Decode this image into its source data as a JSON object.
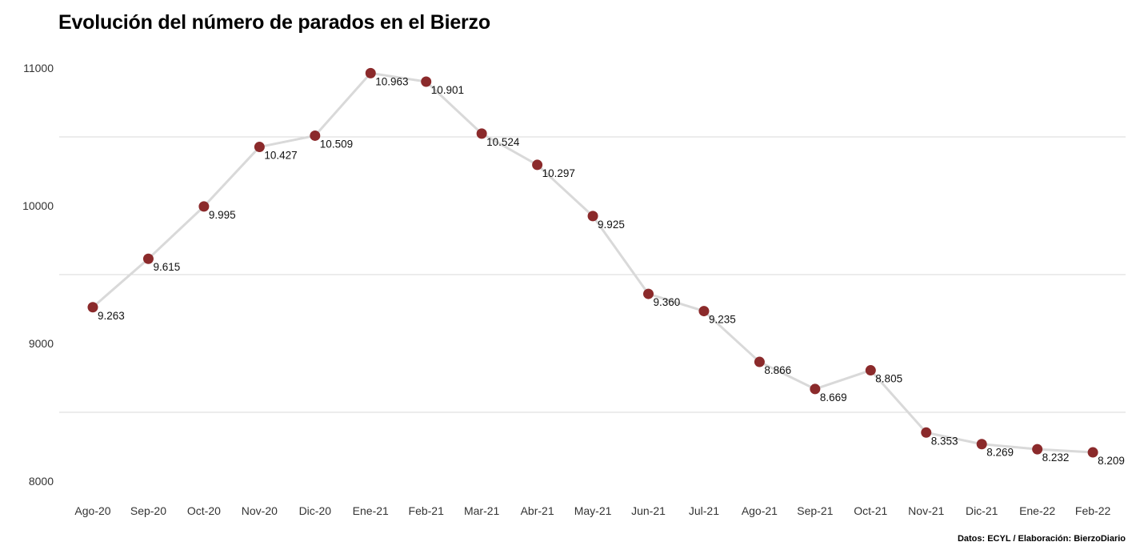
{
  "chart_data": {
    "type": "line",
    "title": "Evolución del número de parados en el Bierzo",
    "credit": "Datos: ECYL / Elaboración: BierzoDiario",
    "xlabel": "",
    "ylabel": "",
    "ylim": [
      8000,
      11000
    ],
    "y_ticks": [
      "8000",
      "9000",
      "10000",
      "11000"
    ],
    "grid": true,
    "categories": [
      "Ago-20",
      "Sep-20",
      "Oct-20",
      "Nov-20",
      "Dic-20",
      "Ene-21",
      "Feb-21",
      "Mar-21",
      "Abr-21",
      "May-21",
      "Jun-21",
      "Jul-21",
      "Ago-21",
      "Sep-21",
      "Oct-21",
      "Nov-21",
      "Dic-21",
      "Ene-22",
      "Feb-22"
    ],
    "values": [
      9263,
      9615,
      9995,
      10427,
      10509,
      10963,
      10901,
      10524,
      10297,
      9925,
      9360,
      9235,
      8866,
      8669,
      8805,
      8353,
      8269,
      8232,
      8209
    ],
    "labels": [
      "9.263",
      "9.615",
      "9.995",
      "10.427",
      "10.509",
      "10.963",
      "10.901",
      "10.524",
      "10.297",
      "9.925",
      "9.360",
      "9.235",
      "8.866",
      "8.669",
      "8.805",
      "8.353",
      "8.269",
      "8.232",
      "8.209"
    ],
    "colors": {
      "line": "#d9d9d9",
      "marker": "#8b2a2b",
      "grid": "#d9d9d9"
    }
  }
}
